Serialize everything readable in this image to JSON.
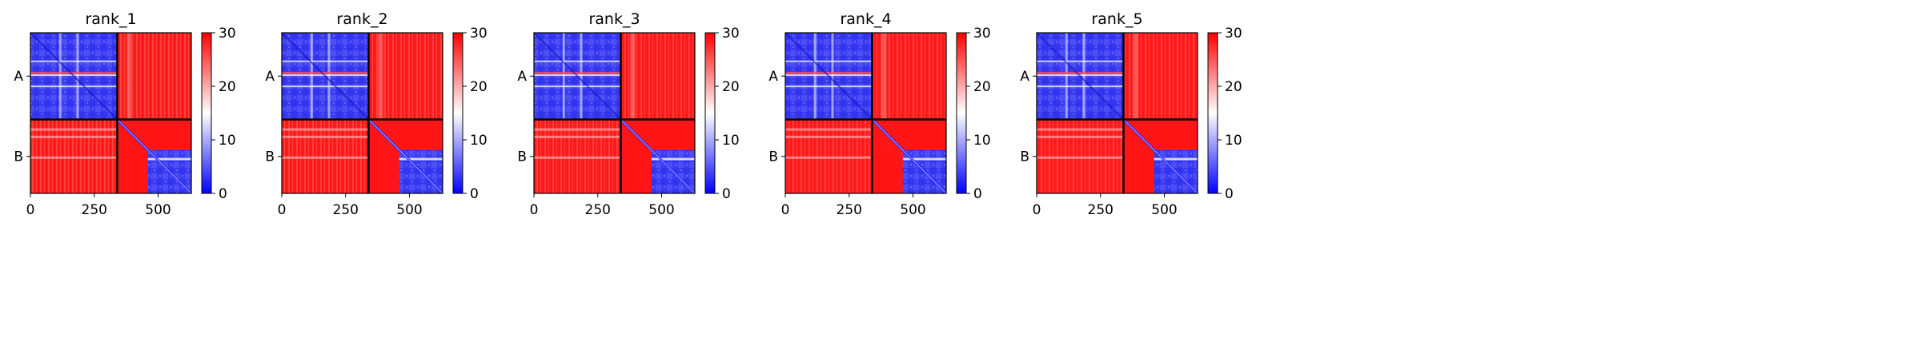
{
  "chart_data": [
    {
      "type": "heatmap",
      "title": "rank_1",
      "chains": [
        "A",
        "B"
      ],
      "chain_boundary": 340,
      "xlim": [
        0,
        630
      ],
      "xticks": [
        0,
        250,
        500
      ],
      "colorbar": {
        "min": 0,
        "max": 30,
        "ticks": [
          0,
          10,
          20,
          30
        ],
        "colormap": "bwr",
        "colors": [
          "#0000ff",
          "#ffffff",
          "#ff0000"
        ]
      },
      "grid": false
    },
    {
      "type": "heatmap",
      "title": "rank_2",
      "chains": [
        "A",
        "B"
      ],
      "chain_boundary": 340,
      "xlim": [
        0,
        630
      ],
      "xticks": [
        0,
        250,
        500
      ],
      "colorbar": {
        "min": 0,
        "max": 30,
        "ticks": [
          0,
          10,
          20,
          30
        ],
        "colormap": "bwr",
        "colors": [
          "#0000ff",
          "#ffffff",
          "#ff0000"
        ]
      },
      "grid": false
    },
    {
      "type": "heatmap",
      "title": "rank_3",
      "chains": [
        "A",
        "B"
      ],
      "chain_boundary": 340,
      "xlim": [
        0,
        630
      ],
      "xticks": [
        0,
        250,
        500
      ],
      "colorbar": {
        "min": 0,
        "max": 30,
        "ticks": [
          0,
          10,
          20,
          30
        ],
        "colormap": "bwr",
        "colors": [
          "#0000ff",
          "#ffffff",
          "#ff0000"
        ]
      },
      "grid": false
    },
    {
      "type": "heatmap",
      "title": "rank_4",
      "chains": [
        "A",
        "B"
      ],
      "chain_boundary": 340,
      "xlim": [
        0,
        630
      ],
      "xticks": [
        0,
        250,
        500
      ],
      "colorbar": {
        "min": 0,
        "max": 30,
        "ticks": [
          0,
          10,
          20,
          30
        ],
        "colormap": "bwr",
        "colors": [
          "#0000ff",
          "#ffffff",
          "#ff0000"
        ]
      },
      "grid": false
    },
    {
      "type": "heatmap",
      "title": "rank_5",
      "chains": [
        "A",
        "B"
      ],
      "chain_boundary": 340,
      "xlim": [
        0,
        630
      ],
      "xticks": [
        0,
        250,
        500
      ],
      "colorbar": {
        "min": 0,
        "max": 30,
        "ticks": [
          0,
          10,
          20,
          30
        ],
        "colormap": "bwr",
        "colors": [
          "#0000ff",
          "#ffffff",
          "#ff0000"
        ]
      },
      "grid": false
    }
  ]
}
